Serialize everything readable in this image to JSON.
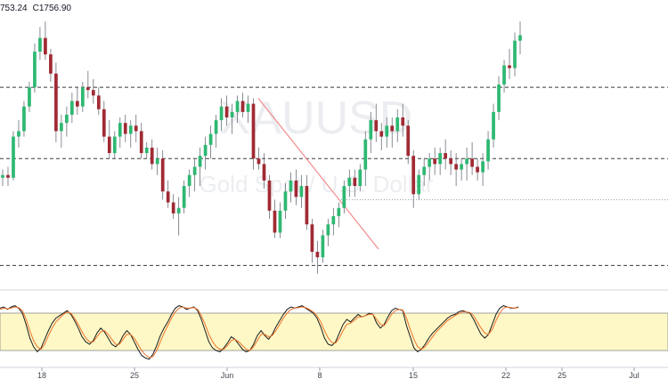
{
  "ohlc_readout": {
    "low": "753.24",
    "close": "C1756.90"
  },
  "colors": {
    "up": "#26a69a",
    "down": "#ef5350",
    "up_body": "#2eb872",
    "down_body": "#a02a33",
    "trendline": "#f28b8b",
    "stoch_k": "#1b1b1b",
    "stoch_d": "#f0722a",
    "stoch_band": "#fdf8c6",
    "dashed": "#3a3a3a",
    "dotted": "#9aa0aa"
  },
  "watermark": {
    "symbol": "XAUUSD",
    "description": "Gold Spot / U.S. Dollar"
  },
  "chart_data": [
    {
      "type": "candlestick",
      "title": "",
      "xlabel": "",
      "ylabel": "",
      "x_tick_labels": [
        "18",
        "25",
        "Jun",
        "8",
        "15",
        "22",
        "25",
        "Jul"
      ],
      "ylim": [
        1666,
        1764
      ],
      "horizontal_levels": [
        1738,
        1712,
        1673
      ],
      "dotted_level": 1697,
      "trendline": {
        "from": [
          0.0,
          1734
        ],
        "to": [
          1.0,
          1679
        ]
      },
      "candles": [
        [
          1705,
          1708,
          1702,
          1706
        ],
        [
          1706,
          1709,
          1702,
          1705
        ],
        [
          1705,
          1722,
          1704,
          1720
        ],
        [
          1720,
          1726,
          1716,
          1722
        ],
        [
          1722,
          1733,
          1720,
          1731
        ],
        [
          1731,
          1740,
          1729,
          1738
        ],
        [
          1738,
          1754,
          1736,
          1751
        ],
        [
          1751,
          1760,
          1748,
          1756
        ],
        [
          1756,
          1762,
          1748,
          1750
        ],
        [
          1750,
          1752,
          1740,
          1743
        ],
        [
          1743,
          1747,
          1718,
          1722
        ],
        [
          1722,
          1728,
          1716,
          1725
        ],
        [
          1725,
          1731,
          1720,
          1728
        ],
        [
          1728,
          1736,
          1725,
          1733
        ],
        [
          1733,
          1738,
          1728,
          1731
        ],
        [
          1731,
          1740,
          1729,
          1738
        ],
        [
          1738,
          1744,
          1734,
          1737
        ],
        [
          1737,
          1741,
          1732,
          1735
        ],
        [
          1735,
          1738,
          1728,
          1730
        ],
        [
          1730,
          1733,
          1718,
          1720
        ],
        [
          1720,
          1726,
          1712,
          1714
        ],
        [
          1714,
          1722,
          1712,
          1720
        ],
        [
          1720,
          1727,
          1716,
          1725
        ],
        [
          1725,
          1728,
          1718,
          1721
        ],
        [
          1721,
          1726,
          1716,
          1724
        ],
        [
          1724,
          1728,
          1718,
          1722
        ],
        [
          1722,
          1725,
          1712,
          1714
        ],
        [
          1714,
          1718,
          1712,
          1716
        ],
        [
          1716,
          1719,
          1708,
          1710
        ],
        [
          1710,
          1716,
          1706,
          1712
        ],
        [
          1712,
          1715,
          1697,
          1700
        ],
        [
          1700,
          1704,
          1694,
          1696
        ],
        [
          1696,
          1699,
          1690,
          1692
        ],
        [
          1692,
          1698,
          1684,
          1694
        ],
        [
          1694,
          1704,
          1692,
          1702
        ],
        [
          1702,
          1708,
          1698,
          1706
        ],
        [
          1706,
          1712,
          1700,
          1709
        ],
        [
          1709,
          1716,
          1702,
          1713
        ],
        [
          1713,
          1720,
          1708,
          1717
        ],
        [
          1717,
          1724,
          1712,
          1721
        ],
        [
          1721,
          1728,
          1716,
          1726
        ],
        [
          1726,
          1734,
          1722,
          1731
        ],
        [
          1731,
          1735,
          1724,
          1727
        ],
        [
          1727,
          1732,
          1721,
          1729
        ],
        [
          1729,
          1735,
          1725,
          1733
        ],
        [
          1733,
          1736,
          1727,
          1729
        ],
        [
          1729,
          1735,
          1725,
          1732
        ],
        [
          1732,
          1734,
          1708,
          1712
        ],
        [
          1712,
          1716,
          1708,
          1710
        ],
        [
          1710,
          1714,
          1701,
          1704
        ],
        [
          1704,
          1706,
          1690,
          1693
        ],
        [
          1693,
          1697,
          1683,
          1685
        ],
        [
          1685,
          1696,
          1683,
          1693
        ],
        [
          1693,
          1703,
          1690,
          1700
        ],
        [
          1700,
          1707,
          1696,
          1704
        ],
        [
          1704,
          1708,
          1695,
          1698
        ],
        [
          1698,
          1706,
          1694,
          1702
        ],
        [
          1702,
          1706,
          1686,
          1688
        ],
        [
          1688,
          1690,
          1674,
          1678
        ],
        [
          1678,
          1682,
          1670,
          1676
        ],
        [
          1676,
          1686,
          1674,
          1684
        ],
        [
          1684,
          1690,
          1680,
          1688
        ],
        [
          1688,
          1694,
          1684,
          1691
        ],
        [
          1691,
          1696,
          1687,
          1694
        ],
        [
          1694,
          1704,
          1692,
          1702
        ],
        [
          1702,
          1708,
          1698,
          1705
        ],
        [
          1705,
          1708,
          1698,
          1702
        ],
        [
          1702,
          1710,
          1700,
          1708
        ],
        [
          1708,
          1722,
          1702,
          1719
        ],
        [
          1719,
          1729,
          1714,
          1726
        ],
        [
          1726,
          1732,
          1718,
          1722
        ],
        [
          1722,
          1725,
          1715,
          1720
        ],
        [
          1720,
          1727,
          1716,
          1724
        ],
        [
          1724,
          1727,
          1716,
          1722
        ],
        [
          1722,
          1730,
          1718,
          1727
        ],
        [
          1727,
          1732,
          1720,
          1724
        ],
        [
          1724,
          1726,
          1710,
          1713
        ],
        [
          1713,
          1715,
          1694,
          1699
        ],
        [
          1699,
          1708,
          1697,
          1706
        ],
        [
          1706,
          1712,
          1702,
          1709
        ],
        [
          1709,
          1714,
          1704,
          1712
        ],
        [
          1712,
          1716,
          1706,
          1710
        ],
        [
          1710,
          1716,
          1706,
          1714
        ],
        [
          1714,
          1719,
          1708,
          1712
        ],
        [
          1712,
          1715,
          1706,
          1710
        ],
        [
          1710,
          1714,
          1702,
          1708
        ],
        [
          1708,
          1712,
          1704,
          1710
        ],
        [
          1710,
          1716,
          1704,
          1712
        ],
        [
          1712,
          1718,
          1706,
          1709
        ],
        [
          1709,
          1712,
          1704,
          1707
        ],
        [
          1707,
          1714,
          1702,
          1711
        ],
        [
          1711,
          1722,
          1708,
          1719
        ],
        [
          1719,
          1732,
          1716,
          1729
        ],
        [
          1729,
          1742,
          1726,
          1739
        ],
        [
          1739,
          1748,
          1736,
          1746
        ],
        [
          1746,
          1752,
          1741,
          1745
        ],
        [
          1745,
          1758,
          1742,
          1755
        ],
        [
          1755,
          1762,
          1750,
          1757
        ]
      ]
    },
    {
      "type": "line",
      "title": "",
      "xlabel": "",
      "ylabel": "",
      "ylim": [
        0,
        100
      ],
      "band": [
        20,
        80
      ],
      "series": [
        {
          "values": [
            88,
            90,
            86,
            90,
            92,
            88,
            80,
            62,
            40,
            26,
            18,
            24,
            38,
            52,
            64,
            72,
            76,
            80,
            84,
            78,
            68,
            56,
            42,
            34,
            30,
            36,
            48,
            56,
            50,
            40,
            30,
            26,
            32,
            44,
            52,
            46,
            34,
            22,
            12,
            8,
            6,
            14,
            28,
            44,
            56,
            66,
            78,
            88,
            92,
            90,
            86,
            88,
            90,
            84,
            70,
            52,
            34,
            24,
            20,
            18,
            24,
            32,
            42,
            38,
            30,
            22,
            18,
            20,
            30,
            44,
            52,
            44,
            38,
            46,
            58,
            68,
            78,
            86,
            90,
            88,
            90,
            92,
            88,
            84,
            80,
            72,
            58,
            40,
            30,
            28,
            34,
            48,
            62,
            70,
            66,
            72,
            78,
            74,
            76,
            80,
            78,
            64,
            56,
            62,
            74,
            84,
            88,
            86,
            84,
            60,
            42,
            24,
            18,
            22,
            30,
            40,
            48,
            54,
            60,
            66,
            72,
            76,
            78,
            82,
            84,
            82,
            80,
            70,
            58,
            46,
            40,
            46,
            62,
            78,
            88,
            92,
            90,
            88,
            88,
            90
          ]
        },
        {
          "values": [
            86,
            88,
            87,
            88,
            90,
            89,
            84,
            70,
            52,
            36,
            26,
            22,
            30,
            44,
            56,
            66,
            72,
            78,
            82,
            80,
            72,
            62,
            50,
            40,
            34,
            34,
            42,
            50,
            52,
            46,
            38,
            30,
            30,
            38,
            46,
            46,
            40,
            30,
            20,
            13,
            9,
            10,
            20,
            34,
            48,
            60,
            72,
            82,
            88,
            90,
            88,
            88,
            89,
            86,
            76,
            62,
            46,
            34,
            26,
            22,
            22,
            28,
            36,
            38,
            34,
            28,
            22,
            20,
            26,
            36,
            46,
            46,
            42,
            44,
            52,
            62,
            72,
            80,
            86,
            88,
            89,
            90,
            89,
            86,
            82,
            76,
            66,
            52,
            40,
            33,
            32,
            40,
            52,
            62,
            64,
            68,
            74,
            74,
            76,
            78,
            78,
            70,
            62,
            60,
            68,
            78,
            84,
            86,
            85,
            72,
            54,
            38,
            26,
            22,
            26,
            34,
            42,
            50,
            56,
            62,
            68,
            72,
            76,
            79,
            82,
            82,
            81,
            76,
            66,
            56,
            48,
            46,
            54,
            68,
            80,
            88,
            90,
            89,
            88,
            89
          ]
        }
      ]
    }
  ]
}
